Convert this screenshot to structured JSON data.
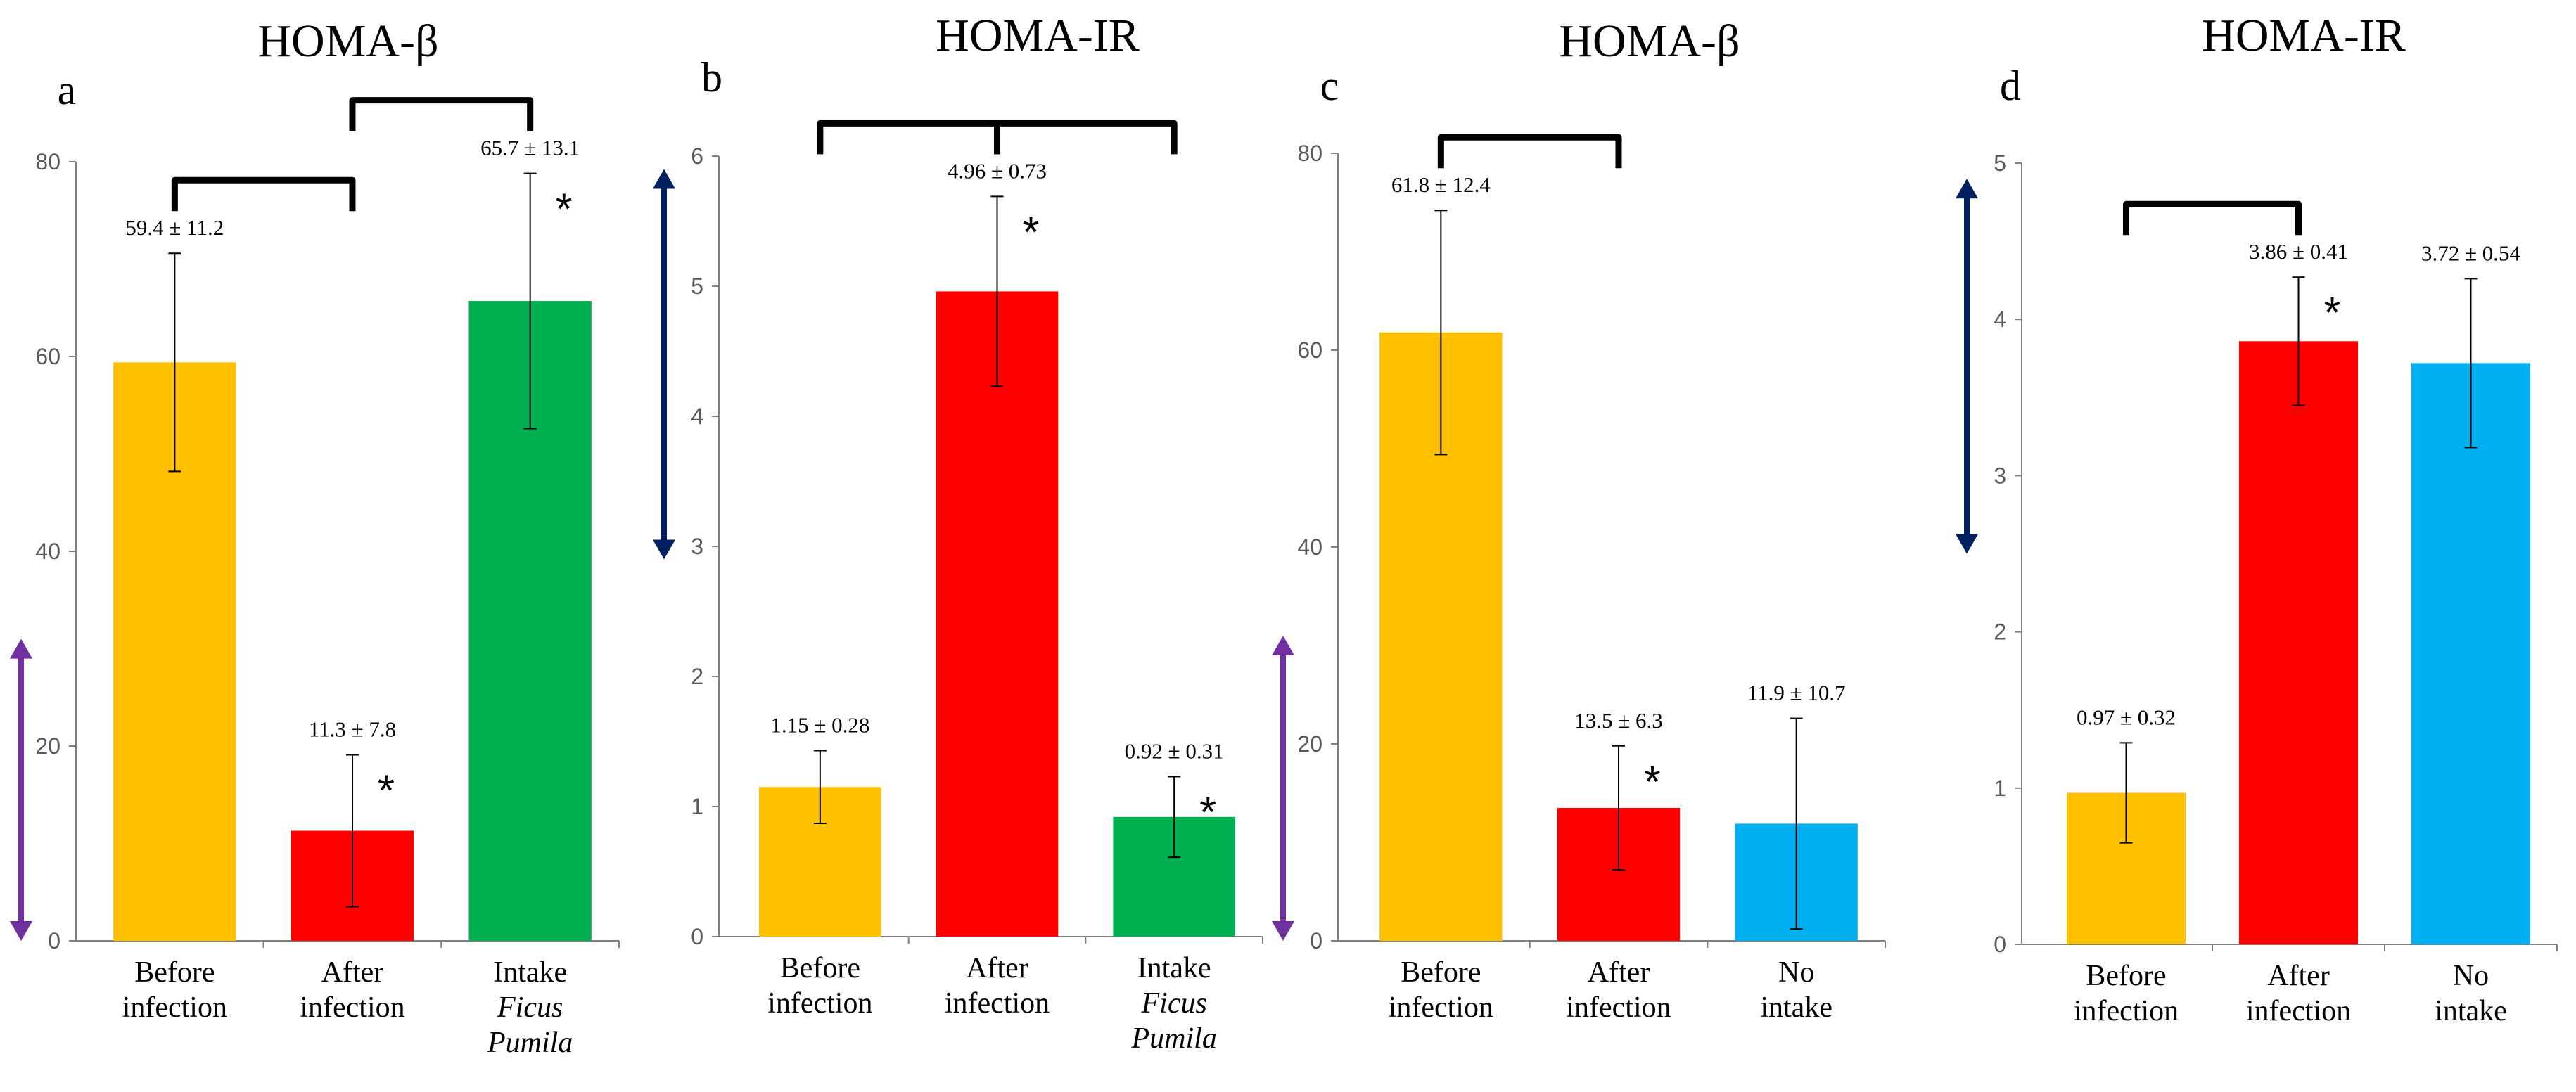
{
  "colors": {
    "before": "#FFC000",
    "after": "#FF0000",
    "ficus": "#00B050",
    "nointake": "#00B0F0",
    "purple_arrow": "#7030A0",
    "navy_arrow": "#002060",
    "axis": "#7f7f7f",
    "tick_text": "#595959"
  },
  "chart_data": [
    {
      "type": "bar",
      "panel": "a",
      "title": "HOMA-β",
      "ylim": [
        0,
        80
      ],
      "yticks": [
        0,
        20,
        40,
        60,
        80
      ],
      "categories": [
        {
          "lines": [
            "Before",
            "infection"
          ],
          "italic": [
            false,
            false
          ]
        },
        {
          "lines": [
            "After",
            "infection"
          ],
          "italic": [
            false,
            false
          ]
        },
        {
          "lines": [
            "Intake",
            "Ficus",
            "Pumila"
          ],
          "italic": [
            false,
            true,
            true
          ]
        }
      ],
      "values": [
        59.4,
        11.3,
        65.7
      ],
      "errors": [
        11.2,
        7.8,
        13.1
      ],
      "labels": [
        "59.4 ± 11.2",
        "11.3 ± 7.8",
        "65.7 ± 13.1"
      ],
      "bar_colors": [
        "before",
        "after",
        "ficus"
      ],
      "significant": [
        false,
        true,
        true
      ],
      "significance_marker": "*",
      "brackets": [
        [
          0,
          1
        ],
        [
          1,
          2
        ]
      ],
      "range_arrow": {
        "color": "purple_arrow",
        "from": 0,
        "to": 31
      }
    },
    {
      "type": "bar",
      "panel": "b",
      "title": "HOMA-IR",
      "ylim": [
        0,
        6
      ],
      "yticks": [
        0,
        1,
        2,
        3,
        4,
        5,
        6
      ],
      "categories": [
        {
          "lines": [
            "Before",
            "infection"
          ],
          "italic": [
            false,
            false
          ]
        },
        {
          "lines": [
            "After",
            "infection"
          ],
          "italic": [
            false,
            false
          ]
        },
        {
          "lines": [
            "Intake",
            "Ficus",
            "Pumila"
          ],
          "italic": [
            false,
            true,
            true
          ]
        }
      ],
      "values": [
        1.15,
        4.96,
        0.92
      ],
      "errors": [
        0.28,
        0.73,
        0.31
      ],
      "labels": [
        "1.15 ± 0.28",
        "4.96 ± 0.73",
        "0.92 ± 0.31"
      ],
      "bar_colors": [
        "before",
        "after",
        "ficus"
      ],
      "significant": [
        false,
        true,
        true
      ],
      "significance_marker": "*",
      "brackets": [
        [
          0,
          1
        ],
        [
          1,
          2
        ]
      ],
      "range_arrow": {
        "color": "navy_arrow",
        "from": 2.9,
        "to": 5.9
      }
    },
    {
      "type": "bar",
      "panel": "c",
      "title": "HOMA-β",
      "ylim": [
        0,
        80
      ],
      "yticks": [
        0,
        20,
        40,
        60,
        80
      ],
      "categories": [
        {
          "lines": [
            "Before",
            "infection"
          ],
          "italic": [
            false,
            false
          ]
        },
        {
          "lines": [
            "After",
            "infection"
          ],
          "italic": [
            false,
            false
          ]
        },
        {
          "lines": [
            "No",
            "intake"
          ],
          "italic": [
            false,
            false
          ]
        }
      ],
      "values": [
        61.8,
        13.5,
        11.9
      ],
      "errors": [
        12.4,
        6.3,
        10.7
      ],
      "labels": [
        "61.8 ± 12.4",
        "13.5 ± 6.3",
        "11.9 ± 10.7"
      ],
      "bar_colors": [
        "before",
        "after",
        "nointake"
      ],
      "significant": [
        false,
        true,
        false
      ],
      "significance_marker": "*",
      "brackets": [
        [
          0,
          1
        ]
      ],
      "range_arrow": {
        "color": "purple_arrow",
        "from": 0,
        "to": 31
      }
    },
    {
      "type": "bar",
      "panel": "d",
      "title": "HOMA-IR",
      "ylim": [
        0,
        5
      ],
      "yticks": [
        0,
        1,
        2,
        3,
        4,
        5
      ],
      "categories": [
        {
          "lines": [
            "Before",
            "infection"
          ],
          "italic": [
            false,
            false
          ]
        },
        {
          "lines": [
            "After",
            "infection"
          ],
          "italic": [
            false,
            false
          ]
        },
        {
          "lines": [
            "No",
            "intake"
          ],
          "italic": [
            false,
            false
          ]
        }
      ],
      "values": [
        0.97,
        3.86,
        3.72
      ],
      "errors": [
        0.32,
        0.41,
        0.54
      ],
      "labels": [
        "0.97 ± 0.32",
        "3.86 ± 0.41",
        "3.72 ± 0.54"
      ],
      "bar_colors": [
        "before",
        "after",
        "nointake"
      ],
      "significant": [
        false,
        true,
        false
      ],
      "significance_marker": "*",
      "brackets": [
        [
          0,
          1
        ]
      ],
      "range_arrow": {
        "color": "navy_arrow",
        "from": 2.5,
        "to": 4.9
      }
    }
  ]
}
